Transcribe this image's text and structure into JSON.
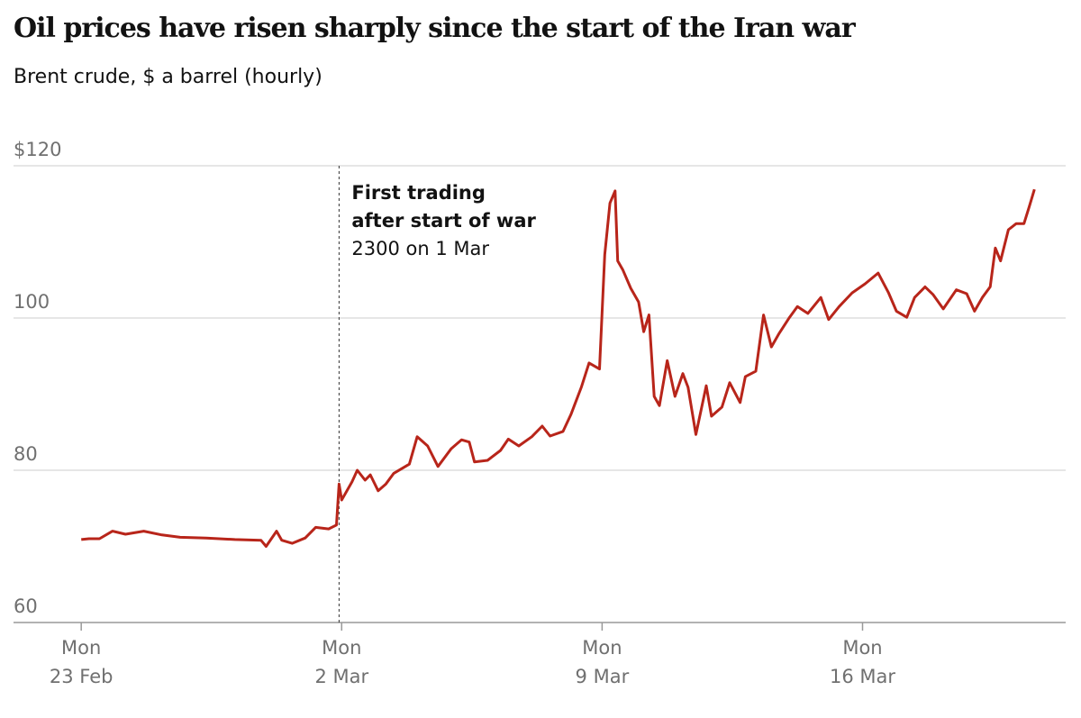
{
  "chart_data": {
    "type": "line",
    "title": "Oil prices have risen sharply since the start of the Iran war",
    "subtitle": "Brent crude, $ a barrel (hourly)",
    "annotation": {
      "x": 0.99,
      "lines": [
        "First trading",
        "after start of war",
        "2300 on 1 Mar"
      ]
    },
    "xlim": [
      -0.26,
      3.78
    ],
    "xticks": [
      {
        "value": 0,
        "label": [
          "Mon",
          "23 Feb"
        ]
      },
      {
        "value": 1,
        "label": [
          "Mon",
          "2 Mar"
        ]
      },
      {
        "value": 2,
        "label": [
          "Mon",
          "9 Mar"
        ]
      },
      {
        "value": 3,
        "label": [
          "Mon",
          "16 Mar"
        ]
      }
    ],
    "ylim": [
      60,
      120
    ],
    "yticks": [
      60,
      80,
      100,
      {
        "value": 120,
        "label": "$120"
      }
    ],
    "grid": true,
    "x": [
      0,
      0.03,
      0.07,
      0.12,
      0.17,
      0.24,
      0.31,
      0.38,
      0.48,
      0.59,
      0.69,
      0.71,
      0.75,
      0.77,
      0.81,
      0.86,
      0.9,
      0.95,
      0.98,
      0.99,
      1.0,
      1.04,
      1.06,
      1.09,
      1.11,
      1.14,
      1.17,
      1.2,
      1.26,
      1.29,
      1.33,
      1.37,
      1.42,
      1.46,
      1.49,
      1.51,
      1.56,
      1.61,
      1.64,
      1.68,
      1.73,
      1.77,
      1.8,
      1.85,
      1.88,
      1.92,
      1.95,
      1.99,
      2.01,
      2.03,
      2.05,
      2.06,
      2.08,
      2.11,
      2.14,
      2.16,
      2.18,
      2.2,
      2.22,
      2.25,
      2.28,
      2.31,
      2.33,
      2.36,
      2.4,
      2.42,
      2.46,
      2.49,
      2.53,
      2.55,
      2.59,
      2.62,
      2.65,
      2.68,
      2.72,
      2.75,
      2.79,
      2.84,
      2.87,
      2.91,
      2.96,
      3.01,
      3.06,
      3.1,
      3.13,
      3.17,
      3.2,
      3.24,
      3.27,
      3.31,
      3.36,
      3.4,
      3.43,
      3.46,
      3.49,
      3.51,
      3.53,
      3.56,
      3.59,
      3.62,
      3.64,
      3.66
    ],
    "series": [
      {
        "name": "Brent crude",
        "color": "#b8251a",
        "values": [
          70.9,
          71.0,
          71.0,
          72.0,
          71.6,
          72.0,
          71.5,
          71.2,
          71.1,
          70.9,
          70.8,
          70.0,
          72.0,
          70.8,
          70.4,
          71.1,
          72.5,
          72.3,
          72.8,
          78.2,
          76.1,
          78.5,
          80.0,
          78.7,
          79.4,
          77.3,
          78.2,
          79.6,
          80.8,
          84.4,
          83.2,
          80.5,
          82.8,
          84.0,
          83.7,
          81.1,
          81.3,
          82.6,
          84.1,
          83.2,
          84.4,
          85.8,
          84.5,
          85.1,
          87.3,
          90.9,
          94.1,
          93.3,
          108.3,
          115.1,
          116.7,
          107.5,
          106.3,
          103.9,
          102.1,
          98.2,
          100.4,
          89.7,
          88.5,
          94.4,
          89.7,
          92.7,
          90.9,
          84.7,
          91.1,
          87.1,
          88.3,
          91.5,
          88.9,
          92.3,
          93.0,
          100.4,
          96.2,
          98.0,
          100.1,
          101.5,
          100.6,
          102.7,
          99.8,
          101.5,
          103.3,
          104.5,
          105.9,
          103.3,
          100.9,
          100.1,
          102.7,
          104.1,
          103.1,
          101.2,
          103.7,
          103.2,
          100.9,
          102.7,
          104.1,
          109.2,
          107.5,
          111.6,
          112.4,
          112.4,
          114.6,
          116.9
        ]
      }
    ]
  }
}
